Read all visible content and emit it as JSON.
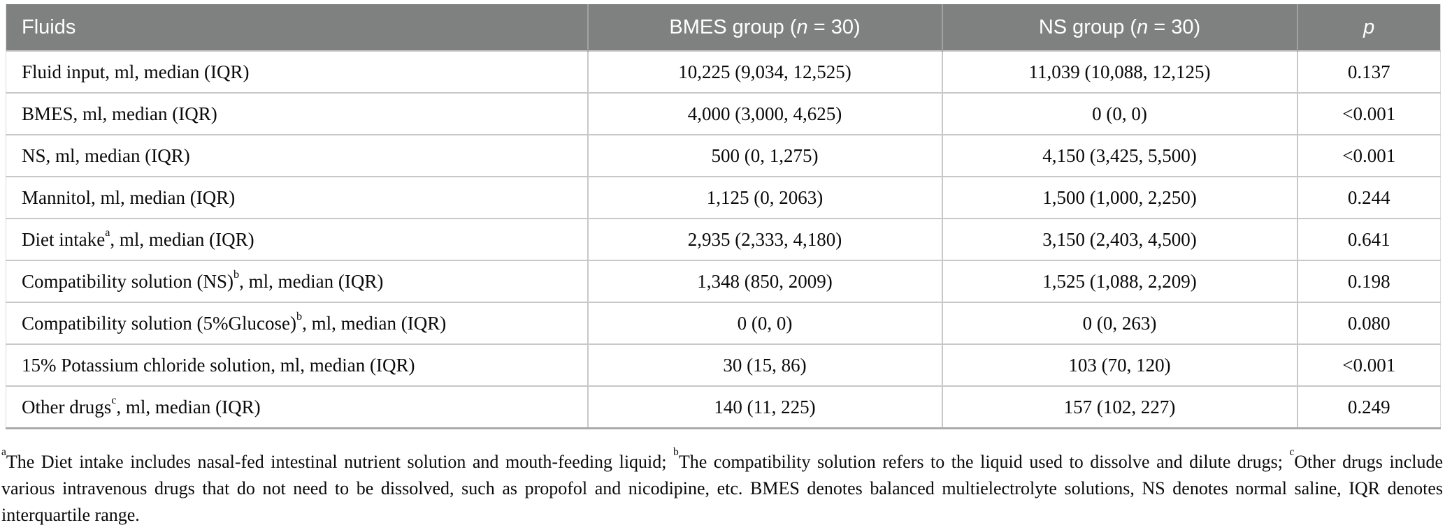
{
  "table": {
    "columns": [
      {
        "label_pre": "Fluids",
        "label_italic": "",
        "label_post": "",
        "align": "left"
      },
      {
        "label_pre": "BMES group (",
        "label_italic": "n",
        "label_post": " = 30)",
        "align": "center"
      },
      {
        "label_pre": "NS group (",
        "label_italic": "n",
        "label_post": " = 30)",
        "align": "center"
      },
      {
        "label_pre": "",
        "label_italic": "p",
        "label_post": "",
        "align": "center"
      }
    ],
    "rows": [
      {
        "label_pre": "Fluid input, ml, median (IQR)",
        "label_sup": "",
        "label_post": "",
        "values": [
          "10,225 (9,034, 12,525)",
          "11,039 (10,088, 12,125)",
          "0.137"
        ]
      },
      {
        "label_pre": "BMES, ml, median (IQR)",
        "label_sup": "",
        "label_post": "",
        "values": [
          "4,000 (3,000, 4,625)",
          "0 (0, 0)",
          "<0.001"
        ]
      },
      {
        "label_pre": "NS, ml, median (IQR)",
        "label_sup": "",
        "label_post": "",
        "values": [
          "500 (0, 1,275)",
          "4,150 (3,425, 5,500)",
          "<0.001"
        ]
      },
      {
        "label_pre": "Mannitol, ml, median (IQR)",
        "label_sup": "",
        "label_post": "",
        "values": [
          "1,125 (0, 2063)",
          "1,500 (1,000, 2,250)",
          "0.244"
        ]
      },
      {
        "label_pre": "Diet intake",
        "label_sup": "a",
        "label_post": ", ml, median (IQR)",
        "values": [
          "2,935 (2,333, 4,180)",
          "3,150 (2,403, 4,500)",
          "0.641"
        ]
      },
      {
        "label_pre": "Compatibility solution (NS)",
        "label_sup": "b",
        "label_post": ", ml, median (IQR)",
        "values": [
          "1,348 (850, 2009)",
          "1,525 (1,088, 2,209)",
          "0.198"
        ]
      },
      {
        "label_pre": "Compatibility solution (5%Glucose)",
        "label_sup": "b",
        "label_post": ", ml, median (IQR)",
        "values": [
          "0 (0, 0)",
          "0 (0, 263)",
          "0.080"
        ]
      },
      {
        "label_pre": "15% Potassium chloride solution, ml, median (IQR)",
        "label_sup": "",
        "label_post": "",
        "values": [
          "30 (15, 86)",
          "103 (70, 120)",
          "<0.001"
        ]
      },
      {
        "label_pre": "Other drugs",
        "label_sup": "c",
        "label_post": ", ml, median (IQR)",
        "values": [
          "140 (11, 225)",
          "157 (102, 227)",
          "0.249"
        ]
      }
    ]
  },
  "footnote": {
    "segments": [
      {
        "sup": "a",
        "text": "The Diet intake includes nasal-fed intestinal nutrient solution and mouth-feeding liquid; "
      },
      {
        "sup": "b",
        "text": "The compatibility solution refers to the liquid used to dissolve and dilute drugs; "
      },
      {
        "sup": "c",
        "text": "Other drugs include various intravenous drugs that do not need to be dissolved, such as propofol and nicodipine, etc. BMES denotes balanced multielectrolyte solutions, NS denotes normal saline, IQR denotes interquartile range."
      }
    ]
  },
  "colors": {
    "header_bg": "#7f8080",
    "header_text": "#ffffff",
    "row_border": "#c8c8c8",
    "body_text": "#0a0a0a"
  }
}
